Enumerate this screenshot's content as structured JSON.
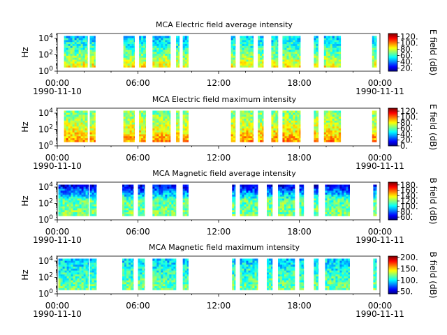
{
  "figure": {
    "x_tick_labels": [
      "00:00",
      "06:00",
      "12:00",
      "18:00",
      "00:00"
    ],
    "x_date_labels": [
      "1990-11-10",
      "1990-11-11"
    ]
  },
  "chart_data": [
    {
      "type": "heatmap",
      "title": "MCA  Electric field average intensity",
      "ylabel": "Hz",
      "yscale": "log",
      "ylim": [
        1,
        40000
      ],
      "ytick_labels": [
        "10^0",
        "10^2",
        "10^4"
      ],
      "xlim": [
        "1990-11-10 00:00",
        "1990-11-11 00:00"
      ],
      "colorbar": {
        "label": "E field (dB)",
        "range": [
          10,
          130
        ],
        "ticks": [
          20,
          40,
          60,
          80,
          100,
          120
        ],
        "tick_labels": [
          "20.",
          "40.",
          "60.",
          "80.",
          "100.",
          "120."
        ]
      },
      "data_intervals_utc": [
        [
          "00:30",
          "02:15"
        ],
        [
          "02:25",
          "02:50"
        ],
        [
          "04:55",
          "05:45"
        ],
        [
          "06:05",
          "06:35"
        ],
        [
          "07:05",
          "08:25"
        ],
        [
          "08:50",
          "09:05"
        ],
        [
          "09:20",
          "09:45"
        ],
        [
          "12:55",
          "13:15"
        ],
        [
          "13:35",
          "14:35"
        ],
        [
          "14:55",
          "15:20"
        ],
        [
          "15:55",
          "16:25"
        ],
        [
          "16:45",
          "18:05"
        ],
        [
          "19:05",
          "19:25"
        ],
        [
          "19:50",
          "21:05"
        ],
        [
          "23:25",
          "23:45"
        ]
      ],
      "dominant_levels_db": {
        "low_freq": 85,
        "mid_freq": 65,
        "high_freq": 50
      }
    },
    {
      "type": "heatmap",
      "title": "MCA  Electric field maximum intensity",
      "ylabel": "Hz",
      "yscale": "log",
      "ylim": [
        1,
        40000
      ],
      "ytick_labels": [
        "10^0",
        "10^2",
        "10^4"
      ],
      "xlim": [
        "1990-11-10 00:00",
        "1990-11-11 00:00"
      ],
      "colorbar": {
        "label": "E field (dB)",
        "range": [
          0,
          130
        ],
        "ticks": [
          0,
          20,
          40,
          60,
          80,
          100,
          120
        ],
        "tick_labels": [
          "0.",
          "20.",
          "40.",
          "60.",
          "80.",
          "100.",
          "120."
        ]
      },
      "data_intervals_utc": [
        [
          "00:30",
          "02:15"
        ],
        [
          "02:25",
          "02:50"
        ],
        [
          "04:55",
          "05:45"
        ],
        [
          "06:05",
          "06:35"
        ],
        [
          "07:05",
          "08:25"
        ],
        [
          "08:50",
          "09:05"
        ],
        [
          "09:20",
          "09:45"
        ],
        [
          "12:55",
          "13:15"
        ],
        [
          "13:35",
          "14:35"
        ],
        [
          "14:55",
          "15:20"
        ],
        [
          "15:55",
          "16:25"
        ],
        [
          "16:45",
          "18:05"
        ],
        [
          "19:05",
          "19:25"
        ],
        [
          "19:50",
          "21:05"
        ],
        [
          "23:25",
          "23:45"
        ]
      ],
      "dominant_levels_db": {
        "low_freq": 95,
        "mid_freq": 75,
        "high_freq": 65
      }
    },
    {
      "type": "heatmap",
      "title": "MCA  Magnetic field average intensity",
      "ylabel": "Hz",
      "yscale": "log",
      "ylim": [
        1,
        40000
      ],
      "ytick_labels": [
        "10^0",
        "10^2",
        "10^4"
      ],
      "xlim": [
        "1990-11-10 00:00",
        "1990-11-11 00:00"
      ],
      "colorbar": {
        "label": "B field (dB)",
        "range": [
          50,
          190
        ],
        "ticks": [
          60,
          80,
          100,
          120,
          140,
          160,
          180
        ],
        "tick_labels": [
          "60.",
          "80.",
          "100.",
          "120.",
          "140.",
          "160.",
          "180."
        ]
      },
      "data_intervals_utc": [
        [
          "00:05",
          "02:20"
        ],
        [
          "02:25",
          "02:55"
        ],
        [
          "04:50",
          "05:40"
        ],
        [
          "06:00",
          "06:30"
        ],
        [
          "07:05",
          "08:50"
        ],
        [
          "09:20",
          "09:45"
        ],
        [
          "13:00",
          "13:15"
        ],
        [
          "13:35",
          "14:55"
        ],
        [
          "15:35",
          "16:00"
        ],
        [
          "16:25",
          "17:40"
        ],
        [
          "18:00",
          "18:20"
        ],
        [
          "19:05",
          "19:25"
        ],
        [
          "19:55",
          "21:45"
        ],
        [
          "23:30",
          "23:45"
        ]
      ],
      "dominant_levels_db": {
        "low_freq": 120,
        "mid_freq": 115,
        "high_freq": 65
      }
    },
    {
      "type": "heatmap",
      "title": "MCA  Magnetic field maximum intensity",
      "ylabel": "Hz",
      "yscale": "log",
      "ylim": [
        1,
        40000
      ],
      "ytick_labels": [
        "10^0",
        "10^2",
        "10^4"
      ],
      "xlim": [
        "1990-11-10 00:00",
        "1990-11-11 00:00"
      ],
      "colorbar": {
        "label": "B field (dB)",
        "range": [
          40,
          205
        ],
        "ticks": [
          50,
          100,
          150,
          200
        ],
        "tick_labels": [
          "50.",
          "100.",
          "150.",
          "200."
        ]
      },
      "data_intervals_utc": [
        [
          "00:05",
          "02:20"
        ],
        [
          "02:25",
          "02:55"
        ],
        [
          "04:50",
          "05:40"
        ],
        [
          "06:00",
          "06:30"
        ],
        [
          "07:05",
          "08:50"
        ],
        [
          "09:20",
          "09:45"
        ],
        [
          "13:00",
          "13:15"
        ],
        [
          "13:35",
          "14:55"
        ],
        [
          "15:35",
          "16:00"
        ],
        [
          "16:25",
          "17:40"
        ],
        [
          "18:00",
          "18:20"
        ],
        [
          "19:05",
          "19:25"
        ],
        [
          "19:55",
          "21:45"
        ],
        [
          "23:30",
          "23:45"
        ]
      ],
      "dominant_levels_db": {
        "low_freq": 120,
        "mid_freq": 110,
        "high_freq": 95
      }
    }
  ]
}
